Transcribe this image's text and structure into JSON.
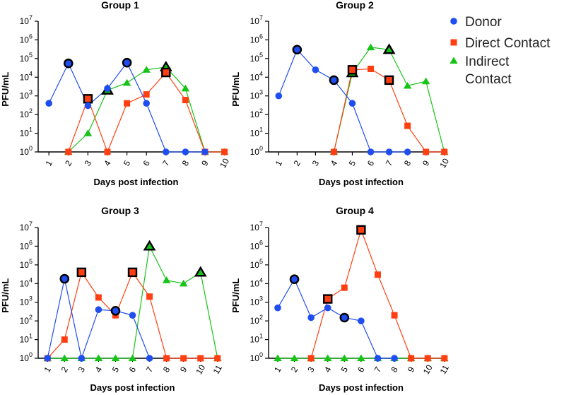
{
  "colors": {
    "donor": "#1f4ef0",
    "direct": "#ff3f12",
    "indirect": "#16c417",
    "outline": "#000000"
  },
  "legend": {
    "entries": [
      {
        "series": "donor",
        "label_lines": [
          "Donor"
        ],
        "marker": "circle"
      },
      {
        "series": "direct",
        "label_lines": [
          "Direct Contact"
        ],
        "marker": "square"
      },
      {
        "series": "indirect",
        "label_lines": [
          "Indirect",
          "Contact"
        ],
        "marker": "triangle"
      }
    ]
  },
  "chart_data": [
    {
      "type": "line",
      "title": "Group 1",
      "xlabel": "Days post infection",
      "ylabel": "PFU/mL",
      "yscale": "log",
      "ylim_exp": [
        0,
        7
      ],
      "ytick_labels": [
        "10^0",
        "10^1",
        "10^2",
        "10^3",
        "10^4",
        "10^5",
        "10^6",
        "10^7"
      ],
      "x": [
        1,
        2,
        3,
        4,
        5,
        6,
        7,
        8,
        9,
        10
      ],
      "series": [
        {
          "name": "Donor",
          "key": "donor",
          "values": [
            400,
            55000,
            300,
            2500,
            60000,
            400,
            1,
            1,
            1,
            null
          ],
          "highlighted_days": [
            2,
            5
          ]
        },
        {
          "name": "Direct Contact",
          "key": "direct",
          "values": [
            null,
            1,
            700,
            1,
            400,
            1200,
            18000,
            600,
            1,
            1
          ],
          "highlighted_days": [
            3,
            7
          ]
        },
        {
          "name": "Indirect Contact",
          "key": "indirect",
          "values": [
            null,
            1,
            10,
            2000,
            5000,
            25000,
            35000,
            2500,
            1,
            1
          ],
          "highlighted_days": [
            4,
            7
          ]
        }
      ]
    },
    {
      "type": "line",
      "title": "Group 2",
      "xlabel": "Days post infection",
      "ylabel": "PFU/mL",
      "yscale": "log",
      "ylim_exp": [
        0,
        7
      ],
      "ytick_labels": [
        "10^0",
        "10^1",
        "10^2",
        "10^3",
        "10^4",
        "10^5",
        "10^6",
        "10^7"
      ],
      "x": [
        1,
        2,
        3,
        4,
        5,
        6,
        7,
        8,
        9,
        10
      ],
      "series": [
        {
          "name": "Donor",
          "key": "donor",
          "values": [
            1000,
            300000,
            25000,
            7000,
            400,
            1,
            1,
            1,
            null,
            null
          ],
          "highlighted_days": [
            2,
            4
          ]
        },
        {
          "name": "Direct Contact",
          "key": "direct",
          "values": [
            null,
            null,
            null,
            1,
            25000,
            28000,
            7000,
            25,
            1,
            1
          ],
          "highlighted_days": [
            5,
            7
          ]
        },
        {
          "name": "Indirect Contact",
          "key": "indirect",
          "values": [
            null,
            null,
            null,
            1,
            17000,
            400000,
            300000,
            3500,
            6000,
            1
          ],
          "highlighted_days": [
            5,
            7
          ]
        }
      ]
    },
    {
      "type": "line",
      "title": "Group 3",
      "xlabel": "Days post infection",
      "ylabel": "PFU/mL",
      "yscale": "log",
      "ylim_exp": [
        0,
        7
      ],
      "ytick_labels": [
        "10^0",
        "10^1",
        "10^2",
        "10^3",
        "10^4",
        "10^5",
        "10^6",
        "10^7"
      ],
      "x": [
        1,
        2,
        3,
        4,
        5,
        6,
        7,
        8,
        9,
        10,
        11
      ],
      "series": [
        {
          "name": "Donor",
          "key": "donor",
          "values": [
            1,
            18000,
            1,
            400,
            350,
            200,
            1,
            null,
            null,
            null,
            null
          ],
          "highlighted_days": [
            2,
            5
          ]
        },
        {
          "name": "Direct Contact",
          "key": "direct",
          "values": [
            1,
            10,
            40000,
            1800,
            200,
            40000,
            2000,
            1,
            1,
            1,
            1
          ],
          "highlighted_days": [
            3,
            6
          ]
        },
        {
          "name": "Indirect Contact",
          "key": "indirect",
          "values": [
            1,
            1,
            1,
            1,
            1,
            1,
            1000000,
            15000,
            10000,
            40000,
            1
          ],
          "highlighted_days": [
            7,
            10
          ]
        }
      ]
    },
    {
      "type": "line",
      "title": "Group 4",
      "xlabel": "Days post infection",
      "ylabel": "PFU/mL",
      "yscale": "log",
      "ylim_exp": [
        0,
        7
      ],
      "ytick_labels": [
        "10^0",
        "10^1",
        "10^2",
        "10^3",
        "10^4",
        "10^5",
        "10^6",
        "10^7"
      ],
      "x": [
        1,
        2,
        3,
        4,
        5,
        6,
        7,
        8,
        9,
        10,
        11
      ],
      "series": [
        {
          "name": "Donor",
          "key": "donor",
          "values": [
            500,
            17000,
            150,
            500,
            150,
            100,
            1,
            1,
            null,
            null,
            null
          ],
          "highlighted_days": [
            2,
            5
          ]
        },
        {
          "name": "Direct Contact",
          "key": "direct",
          "values": [
            null,
            null,
            1,
            1500,
            6000,
            7500000,
            30000,
            200,
            1,
            1,
            1
          ],
          "highlighted_days": [
            4,
            6
          ]
        },
        {
          "name": "Indirect Contact",
          "key": "indirect",
          "values": [
            1,
            1,
            1,
            1,
            1,
            1,
            1,
            1,
            1,
            1,
            1
          ],
          "highlighted_days": []
        }
      ]
    }
  ]
}
